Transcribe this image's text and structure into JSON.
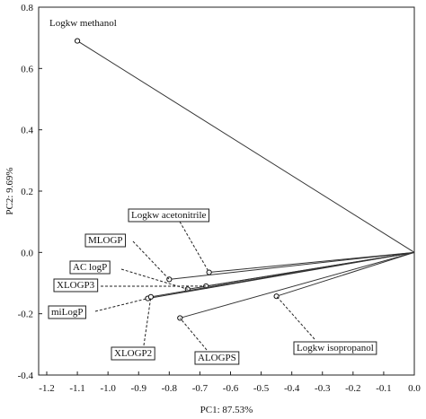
{
  "chart_data": {
    "type": "scatter",
    "xlabel": "PC1: 87.53%",
    "ylabel": "PC2:  9.69%",
    "xlim": [
      -1.2,
      0
    ],
    "ylim": [
      -0.4,
      0.8
    ],
    "xticks": [
      -1.2,
      -1.1,
      {
        "value": -1,
        "label": "-1.0"
      },
      -0.9,
      -0.8,
      -0.7,
      -0.6,
      -0.5,
      -0.4,
      -0.3,
      -0.2,
      -0.1,
      {
        "value": 0,
        "label": "0.0"
      }
    ],
    "yticks": [
      -0.4,
      -0.2,
      {
        "value": 0,
        "label": "0.0"
      },
      0.2,
      0.4,
      0.6,
      0.8
    ],
    "color": "#333333",
    "series": [
      {
        "name": "Logkw methanol",
        "x": [
          -1.1
        ],
        "values": [
          0.69
        ]
      },
      {
        "name": "Logkw acetonitrile",
        "x": [
          -0.67
        ],
        "values": [
          -0.065
        ]
      },
      {
        "name": "MLOGP",
        "x": [
          -0.8
        ],
        "values": [
          -0.088
        ]
      },
      {
        "name": "AC logP",
        "x": [
          -0.74
        ],
        "values": [
          -0.12
        ]
      },
      {
        "name": "XLOGP3",
        "x": [
          -0.68
        ],
        "values": [
          -0.11
        ]
      },
      {
        "name": "miLogP",
        "x": [
          -0.87
        ],
        "values": [
          -0.15
        ]
      },
      {
        "name": "XLOGP2",
        "x": [
          -0.86
        ],
        "values": [
          -0.145
        ]
      },
      {
        "name": "ALOGPS",
        "x": [
          -0.765
        ],
        "values": [
          -0.214
        ]
      },
      {
        "name": "Logkw isopropanol",
        "x": [
          -0.45
        ],
        "values": [
          -0.143
        ]
      }
    ]
  }
}
